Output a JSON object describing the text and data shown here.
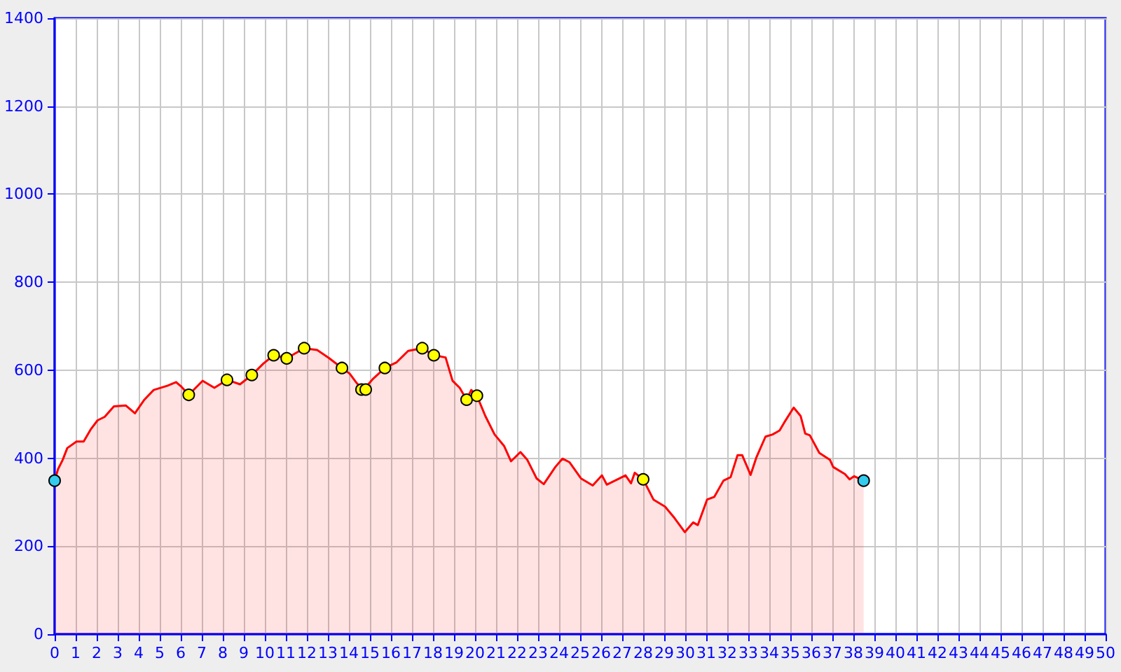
{
  "chart_data": {
    "type": "area",
    "xlim": [
      0,
      50
    ],
    "ylim": [
      0,
      1400
    ],
    "xticks": [
      0,
      1,
      2,
      3,
      4,
      5,
      6,
      7,
      8,
      9,
      10,
      11,
      12,
      13,
      14,
      15,
      16,
      17,
      18,
      19,
      20,
      21,
      22,
      23,
      24,
      25,
      26,
      27,
      28,
      29,
      30,
      31,
      32,
      33,
      34,
      35,
      36,
      37,
      38,
      39,
      40,
      41,
      42,
      43,
      44,
      45,
      46,
      47,
      48,
      49,
      50
    ],
    "yticks": [
      0,
      200,
      400,
      600,
      800,
      1000,
      1200,
      1400
    ],
    "grid": true,
    "series": [
      {
        "color": "#ff0000",
        "marker": "none",
        "x": [
          0,
          0.16,
          0.38,
          0.6,
          1.04,
          1.38,
          1.71,
          2.04,
          2.38,
          2.82,
          3.38,
          3.82,
          4.27,
          4.71,
          5.38,
          5.78,
          6.04,
          6.38,
          7.04,
          7.6,
          8.2,
          8.82,
          9.38,
          9.93,
          10.42,
          11.04,
          11.87,
          12.49,
          13.04,
          13.67,
          14.04,
          14.38,
          14.7,
          15.16,
          15.71,
          16.27,
          16.82,
          17.49,
          18.04,
          18.6,
          18.93,
          19.27,
          19.6,
          19.82,
          20.09,
          20.49,
          20.93,
          21.38,
          21.71,
          22.16,
          22.49,
          22.93,
          23.27,
          23.82,
          24.16,
          24.49,
          25.04,
          25.6,
          26.04,
          26.27,
          27.16,
          27.42,
          27.6,
          28.0,
          28.49,
          29.04,
          29.49,
          29.98,
          30.38,
          30.6,
          31.04,
          31.38,
          31.82,
          32.16,
          32.49,
          32.71,
          33.11,
          33.38,
          33.82,
          34.16,
          34.49,
          34.71,
          35.16,
          35.49,
          35.71,
          35.93,
          36.38,
          36.89,
          37.04,
          37.6,
          37.82,
          38.04,
          38.49
        ],
        "values": [
          349,
          375,
          396,
          423,
          438,
          438,
          465,
          486,
          494,
          518,
          520,
          502,
          533,
          555,
          565,
          573,
          562,
          544,
          576,
          560,
          578,
          568,
          589,
          615,
          634,
          627,
          650,
          646,
          628,
          605,
          592,
          570,
          556,
          581,
          605,
          618,
          644,
          650,
          634,
          629,
          576,
          560,
          533,
          555,
          542,
          496,
          454,
          428,
          393,
          414,
          396,
          354,
          341,
          380,
          399,
          391,
          354,
          338,
          361,
          340,
          361,
          343,
          367,
          352,
          306,
          290,
          264,
          232,
          254,
          248,
          306,
          312,
          349,
          357,
          407,
          407,
          362,
          401,
          449,
          454,
          463,
          481,
          515,
          496,
          456,
          452,
          412,
          396,
          380,
          364,
          352,
          359,
          349
        ]
      },
      {
        "type": "scatter",
        "color": "#ffff00",
        "marker": "circle",
        "x": [
          6.38,
          8.2,
          9.38,
          10.42,
          11.04,
          11.87,
          13.67,
          14.6,
          14.8,
          15.71,
          17.49,
          18.04,
          19.6,
          20.09,
          28.0
        ],
        "values": [
          544,
          578,
          589,
          634,
          627,
          650,
          605,
          556,
          556,
          605,
          650,
          634,
          533,
          542,
          352
        ]
      },
      {
        "type": "scatter",
        "color": "#33ccee",
        "marker": "circle",
        "x": [
          0,
          38.49
        ],
        "values": [
          349,
          349
        ]
      }
    ]
  }
}
